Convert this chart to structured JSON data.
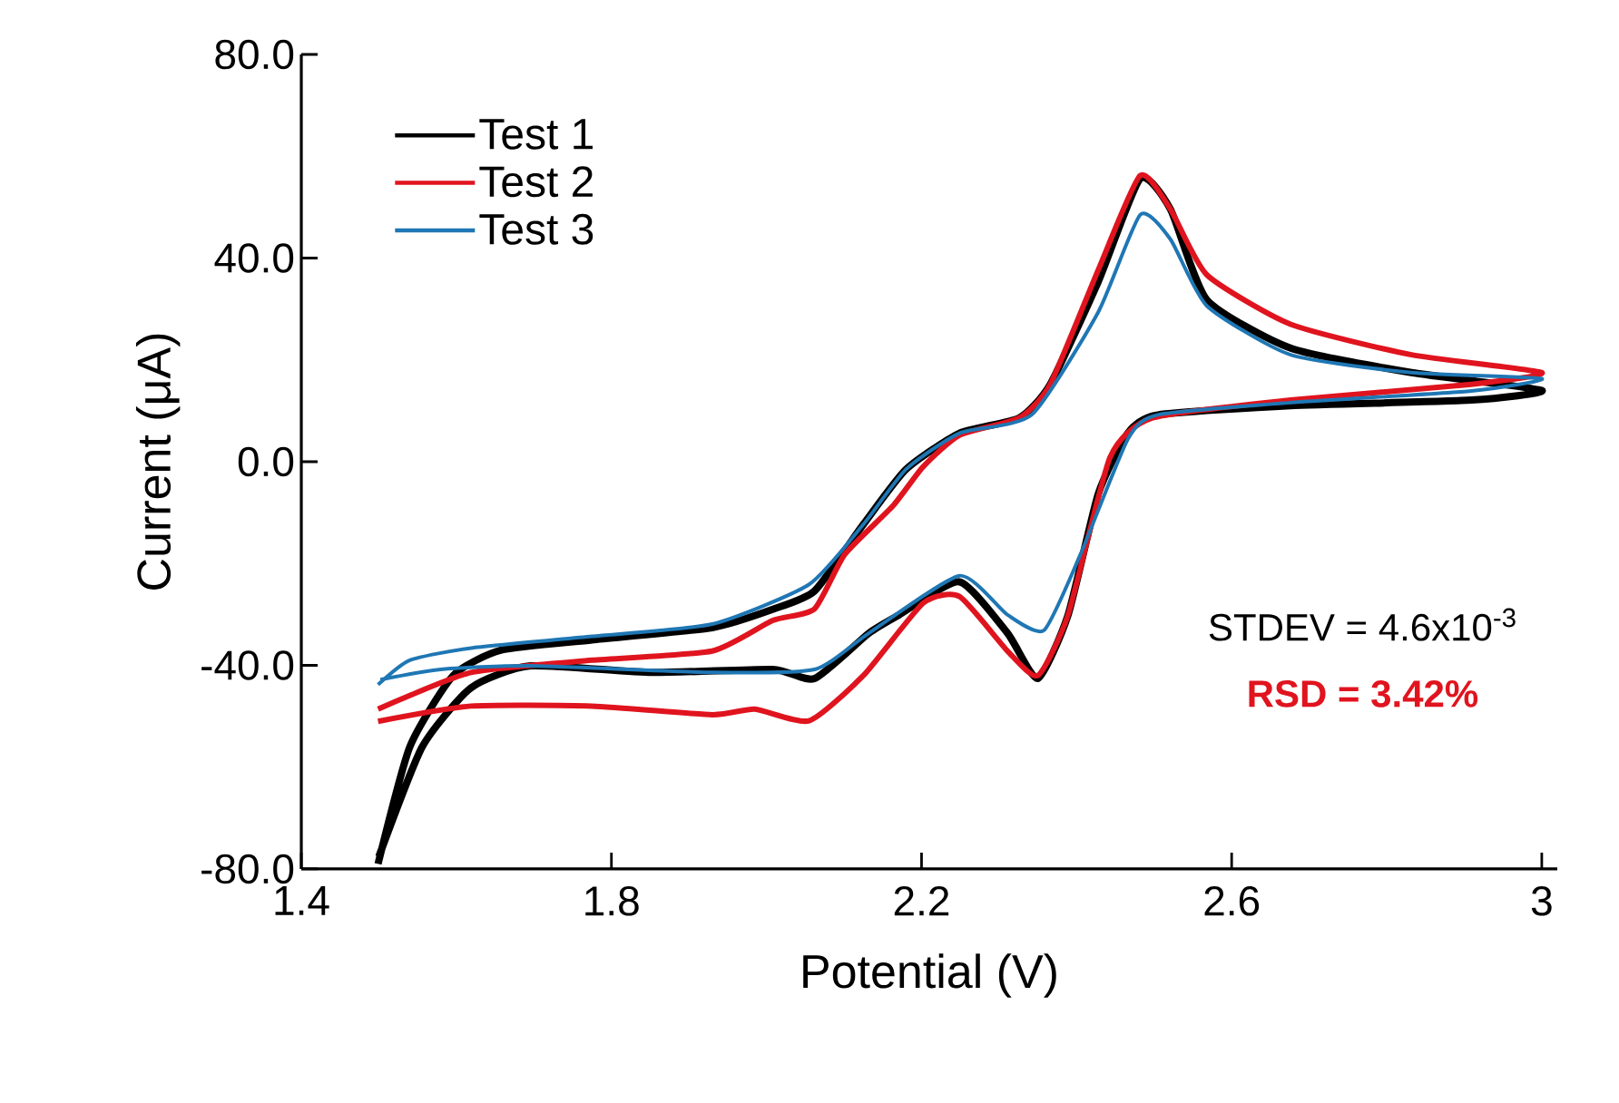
{
  "chart_data": {
    "type": "line",
    "xlabel": "Potential (V)",
    "ylabel": "Current (μA)",
    "xlim": [
      1.4,
      3.02
    ],
    "xticks": [
      1.4,
      1.8,
      2.2,
      2.6,
      3
    ],
    "ylim": [
      -80,
      80
    ],
    "yticks": [
      {
        "value": -80,
        "label": "-80.0"
      },
      {
        "value": -40,
        "label": "-40.0"
      },
      {
        "value": 0,
        "label": "0.0"
      },
      {
        "value": 40,
        "label": "40.0"
      },
      {
        "value": 80,
        "label": "80.0"
      }
    ],
    "grid": false,
    "legend": "top left",
    "marker": "none",
    "line_style": "solid",
    "annotations": [
      "STDEV = 4.6x10$^{-3}$",
      "RSD = 3.42%"
    ],
    "series": [
      {
        "name": "Test 1",
        "color": "#000000",
        "x": [
          1.499,
          1.54,
          1.596,
          1.658,
          1.775,
          1.93,
          2.008,
          2.062,
          2.125,
          2.18,
          2.249,
          2.326,
          2.366,
          2.428,
          2.482,
          2.521,
          2.568,
          2.676,
          2.832,
          3.0,
          2.909,
          2.676,
          2.505,
          2.466,
          2.428,
          2.389,
          2.35,
          2.311,
          2.249,
          2.171,
          2.132,
          2.062,
          2.008,
          1.852,
          1.696,
          1.619,
          1.556,
          1.5
        ],
        "values": [
          -79,
          -56,
          -42,
          -37,
          -35,
          -32.6,
          -29,
          -25.4,
          -12.3,
          -1.5,
          5.6,
          8.6,
          15.2,
          35.4,
          55.6,
          49.6,
          31.8,
          22.3,
          17.5,
          14,
          12.1,
          11,
          9.2,
          5.6,
          -6.3,
          -30.1,
          -42.6,
          -33.7,
          -23.6,
          -30.1,
          -33.7,
          -42.6,
          -40.8,
          -41.4,
          -40.1,
          -44.4,
          -56,
          -77.6
        ]
      },
      {
        "name": "Test 2",
        "color": "#e0141e",
        "x": [
          1.499,
          1.619,
          1.775,
          1.93,
          1.985,
          2.055,
          2.125,
          2.202,
          2.249,
          2.311,
          2.35,
          2.389,
          2.443,
          2.498,
          2.676,
          2.909,
          3.0,
          2.832,
          2.676,
          2.568,
          2.521,
          2.482,
          2.428,
          2.366,
          2.326,
          2.249,
          2.202,
          2.163,
          2.101,
          2.062,
          2.008,
          1.93,
          1.775,
          1.619,
          1.499
        ],
        "values": [
          -51,
          -48,
          -48,
          -49.7,
          -48.6,
          -50.9,
          -42,
          -27.8,
          -26.5,
          -37.2,
          -42,
          -30.1,
          0.8,
          8.6,
          12.1,
          15.2,
          17.5,
          21,
          27,
          36.7,
          49.6,
          56.2,
          37.7,
          15.2,
          8.6,
          5.2,
          -1,
          -8.7,
          -18.2,
          -28.9,
          -31.2,
          -37.2,
          -39,
          -41.4,
          -48.6
        ]
      },
      {
        "name": "Test 3",
        "color": "#1f77b4",
        "x": [
          1.499,
          1.54,
          1.619,
          1.775,
          1.93,
          2.055,
          2.125,
          2.18,
          2.249,
          2.342,
          2.428,
          2.482,
          2.521,
          2.568,
          2.676,
          2.832,
          3.0,
          2.909,
          2.676,
          2.505,
          2.466,
          2.405,
          2.358,
          2.311,
          2.249,
          2.132,
          2.062,
          1.93,
          1.696,
          1.58,
          1.502
        ],
        "values": [
          -43.8,
          -39,
          -36.6,
          -34.3,
          -31.9,
          -24.1,
          -12.3,
          -1.5,
          5.6,
          9.2,
          29.4,
          48.5,
          43.7,
          30.6,
          21,
          17.5,
          16.3,
          13.9,
          11.6,
          9.2,
          4.4,
          -18.2,
          -33.1,
          -30.1,
          -22.4,
          -33.7,
          -40.8,
          -41.4,
          -40.1,
          -40.8,
          -42.8
        ]
      }
    ]
  }
}
